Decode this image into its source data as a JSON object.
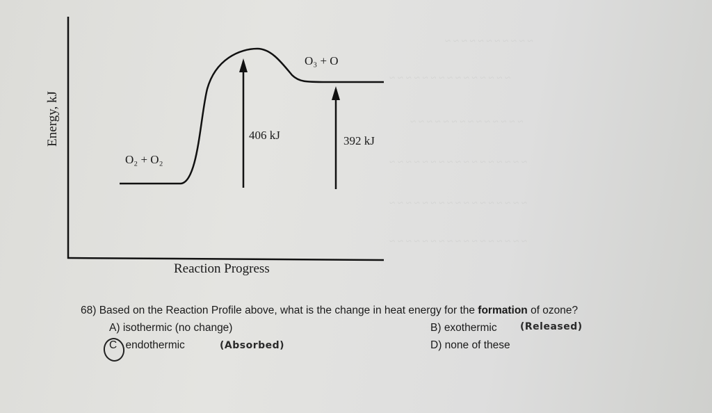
{
  "diagram": {
    "y_axis_label": "Energy, kJ",
    "x_axis_label": "Reaction Progress",
    "reactants_label": "O₂ + O₂",
    "products_label": "O₃ + O",
    "activation_energy_label": "406 kJ",
    "reaction_energy_label": "392 kJ"
  },
  "question": {
    "number": "68)",
    "text_before": "Based on the Reaction Profile above, what is the change in heat energy for the ",
    "emphasis": "formation",
    "text_after": " of ozone?",
    "options": [
      {
        "letter": "A)",
        "text": "isothermic (no change)"
      },
      {
        "letter": "B)",
        "text": "exothermic"
      },
      {
        "letter": "C",
        "text": "endothermic"
      },
      {
        "letter": "D)",
        "text": "none of these"
      }
    ],
    "handwritten_notes": {
      "option_b": "(Released)",
      "option_c": "(Absorbed)"
    }
  }
}
